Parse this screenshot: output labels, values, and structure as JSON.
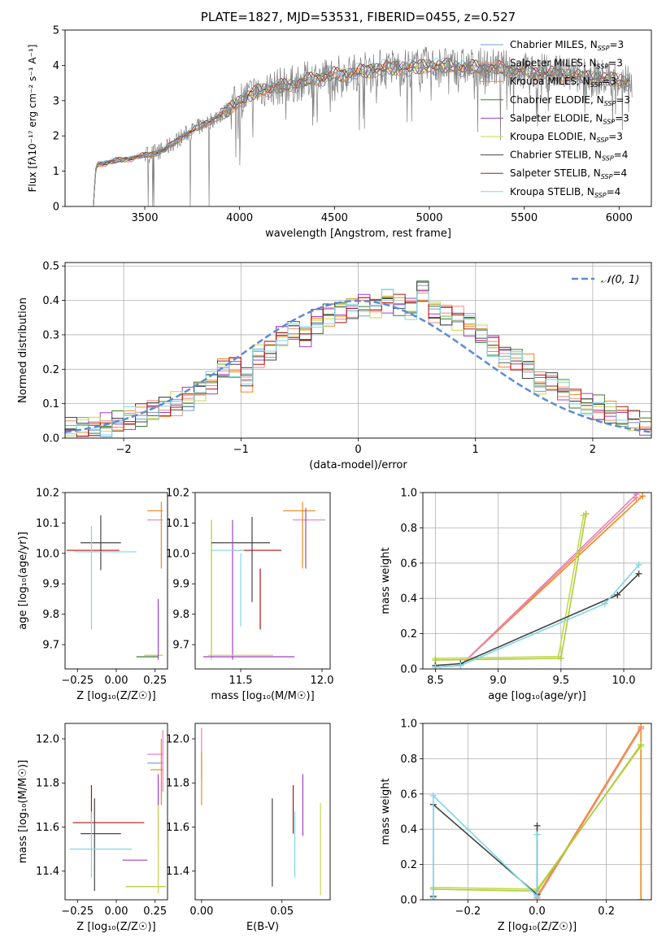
{
  "figure_title": "PLATE=1827, MJD=53531, FIBERID=0455, z=0.527",
  "colors": {
    "Chabrier MILES": "#6f9ed8",
    "Salpeter MILES": "#f08a7d",
    "Kroupa MILES": "#ef8a1a",
    "Chabrier ELODIE": "#3a7a2c",
    "Salpeter ELODIE": "#a23fc4",
    "Kroupa ELODIE": "#c8d64a",
    "Chabrier STELIB": "#444444",
    "Salpeter STELIB": "#b51010",
    "Kroupa STELIB": "#7fd7e6",
    "pink_series": "#e87fbf",
    "olive_series": "#aacc3a",
    "data_spectrum": "#808080",
    "normal_curve": "#5b8bd6"
  },
  "chart_data": [
    {
      "id": "spectrum",
      "type": "line",
      "xlabel": "wavelength [Angstrom, rest frame]",
      "ylabel": "Flux [fλ10⁻¹⁷ erg cm⁻² s⁻¹ A⁻¹]",
      "xlim": [
        3080,
        6170
      ],
      "ylim": [
        0,
        5
      ],
      "xticks": [
        3500,
        4000,
        4500,
        5000,
        5500,
        6000
      ],
      "yticks": [
        0,
        1,
        2,
        3,
        4,
        5
      ],
      "legend_position": "top-right",
      "legend": [
        "Chabrier MILES, N_SSP=3",
        "Salpeter MILES, N_SSP=3",
        "Kroupa MILES, N_SSP=3",
        "Chabrier ELODIE, N_SSP=3",
        "Salpeter ELODIE, N_SSP=3",
        "Kroupa ELODIE, N_SSP=3",
        "Chabrier STELIB, N_SSP=4",
        "Salpeter STELIB, N_SSP=4",
        "Kroupa STELIB, N_SSP=4"
      ],
      "legend_series": [
        "Chabrier MILES",
        "Salpeter MILES",
        "Kroupa MILES",
        "Chabrier ELODIE",
        "Salpeter ELODIE",
        "Kroupa ELODIE",
        "Chabrier STELIB",
        "Salpeter STELIB",
        "Kroupa STELIB"
      ],
      "continuum": [
        [
          3230,
          0.0
        ],
        [
          3240,
          1.0
        ],
        [
          3250,
          1.2
        ],
        [
          3300,
          1.25
        ],
        [
          3350,
          1.3
        ],
        [
          3400,
          1.35
        ],
        [
          3500,
          1.45
        ],
        [
          3600,
          1.6
        ],
        [
          3700,
          2.0
        ],
        [
          3800,
          2.3
        ],
        [
          3900,
          2.6
        ],
        [
          4000,
          3.0
        ],
        [
          4100,
          3.3
        ],
        [
          4200,
          3.4
        ],
        [
          4300,
          3.5
        ],
        [
          4400,
          3.65
        ],
        [
          4500,
          3.75
        ],
        [
          4600,
          3.8
        ],
        [
          4700,
          3.9
        ],
        [
          4800,
          3.95
        ],
        [
          4900,
          3.95
        ],
        [
          5000,
          4.0
        ],
        [
          5100,
          4.0
        ],
        [
          5200,
          3.95
        ],
        [
          5300,
          3.95
        ],
        [
          5400,
          3.9
        ],
        [
          5500,
          3.85
        ],
        [
          5600,
          3.8
        ],
        [
          5700,
          3.75
        ],
        [
          5800,
          3.7
        ],
        [
          5900,
          3.65
        ],
        [
          6000,
          3.6
        ],
        [
          6050,
          3.55
        ]
      ]
    },
    {
      "id": "residuals",
      "type": "histogram",
      "xlabel": "(data-model)/error",
      "ylabel": "Normed distribution",
      "xlim": [
        -2.5,
        2.5
      ],
      "ylim": [
        0,
        0.51
      ],
      "xticks": [
        -2,
        -1,
        0,
        1,
        2
      ],
      "yticks": [
        0.0,
        0.1,
        0.2,
        0.3,
        0.4,
        0.5
      ],
      "grid": true,
      "legend_position": "top-right",
      "normal_label": "𝒩(0, 1)",
      "bins": [
        -2.5,
        -2.4,
        -2.3,
        -2.2,
        -2.1,
        -2.0,
        -1.9,
        -1.8,
        -1.7,
        -1.6,
        -1.5,
        -1.4,
        -1.3,
        -1.2,
        -1.1,
        -1.0,
        -0.9,
        -0.8,
        -0.7,
        -0.6,
        -0.5,
        -0.4,
        -0.3,
        -0.2,
        -0.1,
        0.0,
        0.1,
        0.2,
        0.3,
        0.4,
        0.5,
        0.6,
        0.7,
        0.8,
        0.9,
        1.0,
        1.1,
        1.2,
        1.3,
        1.4,
        1.5,
        1.6,
        1.7,
        1.8,
        1.9,
        2.0,
        2.1,
        2.2,
        2.3,
        2.4,
        2.5
      ],
      "base_values": [
        0.025,
        0.028,
        0.032,
        0.038,
        0.045,
        0.055,
        0.065,
        0.078,
        0.09,
        0.1,
        0.115,
        0.14,
        0.16,
        0.2,
        0.205,
        0.17,
        0.24,
        0.26,
        0.3,
        0.31,
        0.295,
        0.34,
        0.36,
        0.37,
        0.38,
        0.39,
        0.38,
        0.4,
        0.39,
        0.38,
        0.43,
        0.37,
        0.36,
        0.35,
        0.33,
        0.3,
        0.27,
        0.24,
        0.23,
        0.21,
        0.16,
        0.16,
        0.14,
        0.12,
        0.1,
        0.09,
        0.075,
        0.06,
        0.05,
        0.04
      ]
    },
    {
      "id": "age-vs-Z",
      "type": "errorbar",
      "xlabel": "Z [log₁₀(Z/Z☉)]",
      "ylabel": "age  [log₁₀(age/yr)]",
      "xlim": [
        -0.33,
        0.33
      ],
      "ylim": [
        9.62,
        10.2
      ],
      "xticks": [
        -0.25,
        0.0,
        0.25
      ],
      "yticks": [
        9.7,
        9.8,
        9.9,
        10.0,
        10.1,
        10.2
      ],
      "points": [
        {
          "series": "Chabrier STELIB",
          "x": -0.1,
          "y": 10.035,
          "xerr": 0.13,
          "yerr": 0.09
        },
        {
          "series": "Salpeter STELIB",
          "x": -0.15,
          "y": 10.01,
          "xerr": 0.17,
          "yerr": 0.0
        },
        {
          "series": "Kroupa STELIB",
          "x": -0.16,
          "y": 9.92,
          "xerr": 0.0,
          "yerr": 0.17
        },
        {
          "series": "Kroupa STELIB",
          "x": -0.07,
          "y": 10.005,
          "xerr": 0.2,
          "yerr": 0.0
        },
        {
          "series": "pink_series",
          "x": 0.25,
          "y": 10.11,
          "xerr": 0.05,
          "yerr": 0.0
        },
        {
          "series": "Kroupa MILES",
          "x": 0.29,
          "y": 10.06,
          "xerr": 0.0,
          "yerr": 0.11
        },
        {
          "series": "Kroupa MILES",
          "x": 0.25,
          "y": 10.14,
          "xerr": 0.05,
          "yerr": 0.0
        },
        {
          "series": "olive_series",
          "x": 0.24,
          "y": 9.665,
          "xerr": 0.06,
          "yerr": 0.0
        },
        {
          "series": "Salpeter ELODIE",
          "x": 0.27,
          "y": 9.75,
          "xerr": 0.0,
          "yerr": 0.1
        },
        {
          "series": "Chabrier ELODIE",
          "x": 0.2,
          "y": 9.66,
          "xerr": 0.07,
          "yerr": 0.0
        }
      ]
    },
    {
      "id": "age-vs-mass",
      "type": "errorbar",
      "xlabel": "mass [log₁₀(M/M☉)]",
      "ylabel": "",
      "xlim": [
        11.22,
        12.05
      ],
      "ylim": [
        9.62,
        10.2
      ],
      "xticks": [
        11.5,
        12.0
      ],
      "yticks": [
        9.7,
        9.8,
        9.9,
        10.0,
        10.1,
        10.2
      ],
      "points": [
        {
          "series": "olive_series",
          "x": 11.32,
          "y": 9.88,
          "xerr": 0.0,
          "yerr": 0.23
        },
        {
          "series": "Chabrier STELIB",
          "x": 11.5,
          "y": 10.035,
          "xerr": 0.18,
          "yerr": 0.0
        },
        {
          "series": "Chabrier STELIB",
          "x": 11.57,
          "y": 9.98,
          "xerr": 0.0,
          "yerr": 0.14
        },
        {
          "series": "Salpeter STELIB",
          "x": 11.6,
          "y": 10.01,
          "xerr": 0.15,
          "yerr": 0.0
        },
        {
          "series": "Salpeter STELIB",
          "x": 11.62,
          "y": 9.85,
          "xerr": 0.0,
          "yerr": 0.1
        },
        {
          "series": "Salpeter ELODIE",
          "x": 11.45,
          "y": 9.88,
          "xerr": 0.0,
          "yerr": 0.23
        },
        {
          "series": "Salpeter ELODIE",
          "x": 11.55,
          "y": 9.66,
          "xerr": 0.28,
          "yerr": 0.0
        },
        {
          "series": "Kroupa STELIB",
          "x": 11.5,
          "y": 9.88,
          "xerr": 0.0,
          "yerr": 0.12
        },
        {
          "series": "Kroupa STELIB",
          "x": 11.42,
          "y": 10.01,
          "xerr": 0.1,
          "yerr": 0.0
        },
        {
          "series": "Kroupa ELODIE",
          "x": 11.5,
          "y": 9.665,
          "xerr": 0.2,
          "yerr": 0.0
        },
        {
          "series": "Kroupa MILES",
          "x": 11.86,
          "y": 10.14,
          "xerr": 0.1,
          "yerr": 0.0
        },
        {
          "series": "Kroupa MILES",
          "x": 11.88,
          "y": 10.06,
          "xerr": 0.0,
          "yerr": 0.11
        },
        {
          "series": "pink_series",
          "x": 11.92,
          "y": 10.11,
          "xerr": 0.1,
          "yerr": 0.0
        },
        {
          "series": "Salpeter ELODIE",
          "x": 11.9,
          "y": 10.05,
          "xerr": 0.0,
          "yerr": 0.1
        }
      ]
    },
    {
      "id": "massweight-vs-age",
      "type": "line",
      "xlabel": "age  [log₁₀(age/yr)]",
      "ylabel": "mass weight",
      "xlim": [
        8.4,
        10.22
      ],
      "ylim": [
        0,
        1
      ],
      "xticks": [
        8.5,
        9.0,
        9.5,
        10.0
      ],
      "yticks": [
        0.0,
        0.2,
        0.4,
        0.6,
        0.8,
        1.0
      ],
      "grid": true,
      "series": [
        {
          "name": "Kroupa MILES",
          "x": [
            8.5,
            8.7,
            10.15
          ],
          "y": [
            0.01,
            0.02,
            0.98
          ]
        },
        {
          "name": "Salpeter MILES",
          "x": [
            8.5,
            8.7,
            10.1
          ],
          "y": [
            0.01,
            0.02,
            0.97
          ]
        },
        {
          "name": "pink_series",
          "x": [
            8.5,
            8.7,
            10.1
          ],
          "y": [
            0.01,
            0.02,
            0.99
          ]
        },
        {
          "name": "Kroupa ELODIE",
          "x": [
            8.5,
            9.48,
            9.68
          ],
          "y": [
            0.06,
            0.07,
            0.87
          ]
        },
        {
          "name": "olive_series",
          "x": [
            8.5,
            9.5,
            9.7
          ],
          "y": [
            0.05,
            0.06,
            0.88
          ]
        },
        {
          "name": "Chabrier STELIB",
          "x": [
            8.5,
            8.7,
            9.95,
            10.12
          ],
          "y": [
            0.02,
            0.03,
            0.42,
            0.54
          ]
        },
        {
          "name": "Kroupa STELIB",
          "x": [
            8.5,
            8.7,
            9.85,
            10.12
          ],
          "y": [
            0.01,
            0.02,
            0.37,
            0.59
          ]
        }
      ]
    },
    {
      "id": "mass-vs-Z",
      "type": "errorbar",
      "xlabel": "Z [log₁₀(Z/Z☉)]",
      "ylabel": "mass [log₁₀(M/M☉)]",
      "xlim": [
        -0.33,
        0.33
      ],
      "ylim": [
        11.27,
        12.07
      ],
      "xticks": [
        -0.25,
        0.0,
        0.25
      ],
      "yticks": [
        11.4,
        11.6,
        11.8,
        12.0
      ],
      "points": [
        {
          "series": "Salpeter STELIB",
          "x": -0.05,
          "y": 11.62,
          "xerr": 0.23,
          "yerr": 0.0
        },
        {
          "series": "Salpeter STELIB",
          "x": -0.16,
          "y": 11.7,
          "xerr": 0.0,
          "yerr": 0.09
        },
        {
          "series": "Chabrier STELIB",
          "x": -0.1,
          "y": 11.57,
          "xerr": 0.13,
          "yerr": 0.0
        },
        {
          "series": "Chabrier STELIB",
          "x": -0.14,
          "y": 11.52,
          "xerr": 0.0,
          "yerr": 0.21
        },
        {
          "series": "Kroupa STELIB",
          "x": -0.16,
          "y": 11.52,
          "xerr": 0.0,
          "yerr": 0.15
        },
        {
          "series": "Kroupa STELIB",
          "x": -0.1,
          "y": 11.5,
          "xerr": 0.2,
          "yerr": 0.0
        },
        {
          "series": "Salpeter ELODIE",
          "x": 0.12,
          "y": 11.45,
          "xerr": 0.08,
          "yerr": 0.0
        },
        {
          "series": "Salpeter ELODIE",
          "x": 0.27,
          "y": 11.69,
          "xerr": 0.0,
          "yerr": 0.15
        },
        {
          "series": "olive_series",
          "x": 0.19,
          "y": 11.33,
          "xerr": 0.13,
          "yerr": 0.0
        },
        {
          "series": "Kroupa ELODIE",
          "x": 0.27,
          "y": 11.5,
          "xerr": 0.0,
          "yerr": 0.2
        },
        {
          "series": "pink_series",
          "x": 0.25,
          "y": 11.93,
          "xerr": 0.05,
          "yerr": 0.0
        },
        {
          "series": "pink_series",
          "x": 0.3,
          "y": 11.9,
          "xerr": 0.0,
          "yerr": 0.14
        },
        {
          "series": "Chabrier MILES",
          "x": 0.25,
          "y": 11.89,
          "xerr": 0.05,
          "yerr": 0.0
        },
        {
          "series": "Kroupa MILES",
          "x": 0.26,
          "y": 11.86,
          "xerr": 0.04,
          "yerr": 0.0
        },
        {
          "series": "Kroupa MILES",
          "x": 0.29,
          "y": 11.85,
          "xerr": 0.0,
          "yerr": 0.15
        }
      ]
    },
    {
      "id": "mass-vs-EBV",
      "type": "errorbar",
      "xlabel": "E(B-V)",
      "ylabel": "",
      "xlim": [
        -0.004,
        0.08
      ],
      "ylim": [
        11.27,
        12.07
      ],
      "xticks": [
        0.0,
        0.05
      ],
      "xticklabels": [
        "0.00",
        "0.05"
      ],
      "yticks": [
        11.4,
        11.6,
        11.8,
        12.0
      ],
      "points": [
        {
          "series": "pink_series",
          "x": 0.0,
          "y": 11.93,
          "xerr": 0.0,
          "yerr": 0.12
        },
        {
          "series": "Kroupa MILES",
          "x": 0.0,
          "y": 11.82,
          "xerr": 0.0,
          "yerr": 0.12
        },
        {
          "series": "Chabrier STELIB",
          "x": 0.044,
          "y": 11.53,
          "xerr": 0.0,
          "yerr": 0.2
        },
        {
          "series": "Salpeter STELIB",
          "x": 0.057,
          "y": 11.68,
          "xerr": 0.0,
          "yerr": 0.11
        },
        {
          "series": "Kroupa STELIB",
          "x": 0.058,
          "y": 11.52,
          "xerr": 0.0,
          "yerr": 0.15
        },
        {
          "series": "Salpeter ELODIE",
          "x": 0.063,
          "y": 11.7,
          "xerr": 0.0,
          "yerr": 0.14
        },
        {
          "series": "Kroupa ELODIE",
          "x": 0.074,
          "y": 11.5,
          "xerr": 0.0,
          "yerr": 0.21
        }
      ]
    },
    {
      "id": "massweight-vs-Z",
      "type": "line",
      "xlabel": "Z [log₁₀(Z/Z☉)]",
      "ylabel": "mass weight",
      "xlim": [
        -0.33,
        0.33
      ],
      "ylim": [
        0,
        1
      ],
      "xticks": [
        -0.2,
        0.0,
        0.2
      ],
      "yticks": [
        0.0,
        0.2,
        0.4,
        0.6,
        0.8,
        1.0
      ],
      "grid": true,
      "series": [
        {
          "name": "Kroupa MILES",
          "x": [
            0.0,
            0.3,
            0.3
          ],
          "y": [
            0.02,
            0.98,
            0.0
          ]
        },
        {
          "name": "Salpeter MILES",
          "x": [
            0.0,
            0.3
          ],
          "y": [
            0.01,
            0.97
          ]
        },
        {
          "name": "Kroupa ELODIE",
          "x": [
            -0.3,
            0.0,
            0.3
          ],
          "y": [
            0.07,
            0.06,
            0.87
          ]
        },
        {
          "name": "olive_series",
          "x": [
            -0.3,
            0.0,
            0.3
          ],
          "y": [
            0.06,
            0.05,
            0.88
          ]
        },
        {
          "name": "Chabrier STELIB",
          "x": [
            -0.3,
            -0.3,
            0.0,
            0.0
          ],
          "y": [
            0.02,
            0.54,
            0.03,
            0.42
          ]
        },
        {
          "name": "Kroupa STELIB",
          "x": [
            -0.3,
            -0.3,
            0.0,
            0.0
          ],
          "y": [
            0.01,
            0.59,
            0.02,
            0.37
          ]
        }
      ]
    }
  ]
}
